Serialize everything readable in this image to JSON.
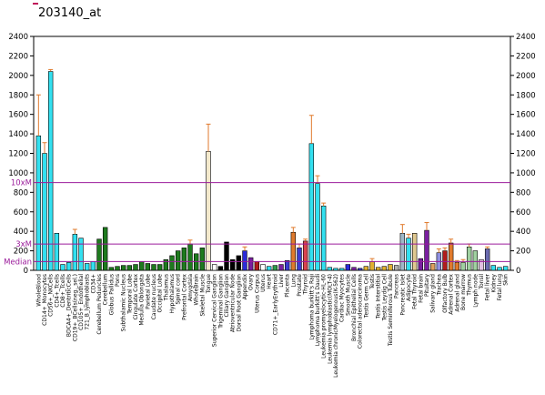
{
  "chart_data": {
    "type": "bar",
    "title": "203140_at",
    "ylim": [
      0,
      2400
    ],
    "yticks": [
      0,
      200,
      400,
      600,
      800,
      1000,
      1200,
      1400,
      1600,
      1800,
      2000,
      2200,
      2400
    ],
    "right_yticks": [
      0,
      200,
      400,
      600,
      800,
      1000,
      1200,
      1400,
      1600,
      1800,
      2000,
      2200,
      2400
    ],
    "reference_lines": [
      {
        "label": "10xM",
        "value": 900,
        "color": "#9b1b9b"
      },
      {
        "label": "3xM",
        "value": 270,
        "color": "#9b1b9b"
      },
      {
        "label": "Median",
        "value": 90,
        "color": "#9b1b9b"
      }
    ],
    "categories": [
      "WholeBlood",
      "CD14+_Monocytes",
      "CD56+_NKCells",
      "CD4+_Tcells",
      "CD8+_Tcells",
      "BDCA4+_DentriticCells",
      "CD19+_BCells(neg._sel.)",
      "CD105+_Endothelial",
      "721_B_lymphoblasts",
      "CD34+",
      "Cerebellum Peduncles",
      "Cerebellum",
      "Globus Pallidus",
      "Pons",
      "Subthalamic Nucleus",
      "Temporal Lobe",
      "Cingulate Cortex",
      "Medulla Oblongata",
      "Parietal Lobe",
      "Caudate nucleus",
      "Occipital Lobe",
      "Thalamus",
      "Hypothalamus",
      "Spinal cord",
      "Prefrontal Cortex",
      "Amygdala",
      "WholeBrain",
      "Skeletal Muscle",
      "Tongue",
      "Superior Cervical Ganglion",
      "Trigeminal Ganglion",
      "Ciliary Ganglion",
      "Atrioventricular Node",
      "Dorsal Root Ganglion",
      "Appendix",
      "Ovary",
      "Uterus Corpus",
      "Uterus",
      "Heart",
      "CD71+_EarlyErythroid",
      "Liver",
      "Placenta",
      "Lung",
      "Prostate",
      "Thyroid",
      "Lymphoma burkitt's Raji",
      "Lymphoma burkitt's Daudi",
      "Leukemia promyelocytic-HL-60",
      "Leukemia lymphoblastic(MOLT-4)",
      "Leukemia chronicMyelogenous(K-562)",
      "Cardiac Myocytes",
      "Smooth Muscle",
      "Bronchial Epithelial Cells",
      "Colorectal adenocarcinoma",
      "Testis Germ Cell",
      "Testis",
      "Testis Interstitial",
      "Testis Leydig Cell",
      "Testis Seminiferous Tubule",
      "Pancreas",
      "Pancreatic Islet",
      "Adipocyte",
      "Fetal Thyroid",
      "Fetal brain",
      "Pituitary",
      "Salivary gland",
      "Trachea",
      "Olfactory Bulb",
      "Adrenal Cortex",
      "Adrenal gland",
      "Bone marrow",
      "Thymus",
      "Lymph node",
      "Tonsil",
      "Fetal liver",
      "Kidney",
      "Fetal lung",
      "Skin"
    ],
    "values": [
      1380,
      1200,
      2040,
      380,
      60,
      80,
      370,
      330,
      70,
      90,
      320,
      440,
      30,
      40,
      50,
      50,
      60,
      90,
      70,
      60,
      60,
      110,
      150,
      200,
      230,
      270,
      170,
      230,
      1220,
      60,
      40,
      290,
      110,
      150,
      200,
      130,
      90,
      60,
      40,
      50,
      60,
      100,
      390,
      230,
      300,
      1300,
      890,
      660,
      30,
      20,
      20,
      60,
      30,
      20,
      40,
      90,
      30,
      40,
      60,
      50,
      380,
      330,
      380,
      120,
      410,
      70,
      180,
      200,
      280,
      80,
      80,
      240,
      200,
      110,
      220,
      50,
      30,
      40
    ],
    "errors": [
      420,
      110,
      20,
      0,
      0,
      0,
      50,
      0,
      0,
      0,
      0,
      0,
      0,
      0,
      0,
      0,
      0,
      0,
      0,
      0,
      0,
      0,
      0,
      0,
      0,
      40,
      0,
      0,
      280,
      0,
      0,
      0,
      0,
      0,
      40,
      0,
      0,
      0,
      0,
      0,
      0,
      0,
      50,
      40,
      20,
      290,
      80,
      30,
      0,
      0,
      0,
      0,
      0,
      0,
      0,
      30,
      0,
      0,
      0,
      0,
      90,
      40,
      0,
      0,
      80,
      0,
      40,
      30,
      40,
      20,
      30,
      30,
      0,
      0,
      20,
      0,
      0,
      0
    ],
    "colors": [
      "#33e0f0",
      "#33e0f0",
      "#33e0f0",
      "#33e0f0",
      "#33e0f0",
      "#33e0f0",
      "#33e0f0",
      "#33e0f0",
      "#33e0f0",
      "#33e0f0",
      "#1e7a1e",
      "#1e7a1e",
      "#1e7a1e",
      "#1e7a1e",
      "#1e7a1e",
      "#1e7a1e",
      "#1e7a1e",
      "#1e7a1e",
      "#1e7a1e",
      "#1e7a1e",
      "#1e7a1e",
      "#1e7a1e",
      "#1e7a1e",
      "#1e7a1e",
      "#1e7a1e",
      "#1e7a1e",
      "#1e7a1e",
      "#1e7a1e",
      "#f3e9cc",
      "#ffffff",
      "#000000",
      "#000000",
      "#000000",
      "#000000",
      "#2b2bd9",
      "#7a1fa0",
      "#b01c1c",
      "#ffffff",
      "#33e0f0",
      "#2e9a4a",
      "#7a1fa0",
      "#3b3bd0",
      "#e07a2c",
      "#3b3bd0",
      "#d9444f",
      "#33e0f0",
      "#33e0f0",
      "#33e0f0",
      "#33e0f0",
      "#33e0f0",
      "#33e0f0",
      "#2b2bd9",
      "#7a1fa0",
      "#3b3bd0",
      "#e0b030",
      "#e0b030",
      "#e0b030",
      "#e0b030",
      "#e0b030",
      "#b0b0b0",
      "#a0b8c8",
      "#33e0f0",
      "#e0c890",
      "#7a1fa0",
      "#7a1fa0",
      "#e0a060",
      "#9090e0",
      "#b01c1c",
      "#e07a2c",
      "#e07a2c",
      "#a0d0a0",
      "#a0d0a0",
      "#a0d0a0",
      "#e0c0e0",
      "#6a6ab0",
      "#33e0f0",
      "#33e0f0",
      "#33e0f0"
    ]
  }
}
